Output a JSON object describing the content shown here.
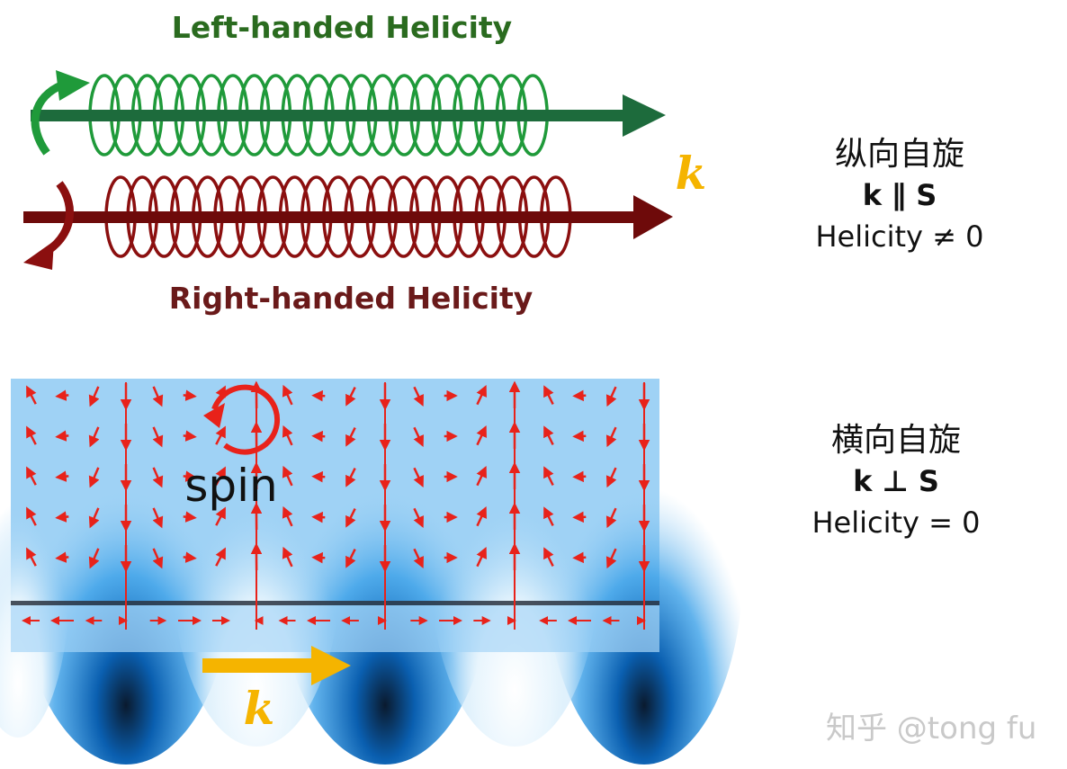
{
  "top": {
    "left_title": "Left-handed Helicity",
    "right_title": "Right-handed Helicity",
    "k_label": "k",
    "left_color": "#1f9a3a",
    "right_color": "#8b0f0f",
    "arrow_green": "#1d6b3c",
    "arrow_red": "#6e0a0a"
  },
  "bottom": {
    "spin_label": "spin",
    "k_label": "k",
    "arrow_color": "#f5b400",
    "field_color": "#e8221a"
  },
  "right_panel": {
    "longitudinal": {
      "title": "纵向自旋",
      "relation": "k ∥ S",
      "helicity": "Helicity ≠ 0"
    },
    "transverse": {
      "title": "横向自旋",
      "relation": "k ⊥ S",
      "helicity": "Helicity = 0"
    }
  },
  "watermark": "知乎 @tong fu"
}
